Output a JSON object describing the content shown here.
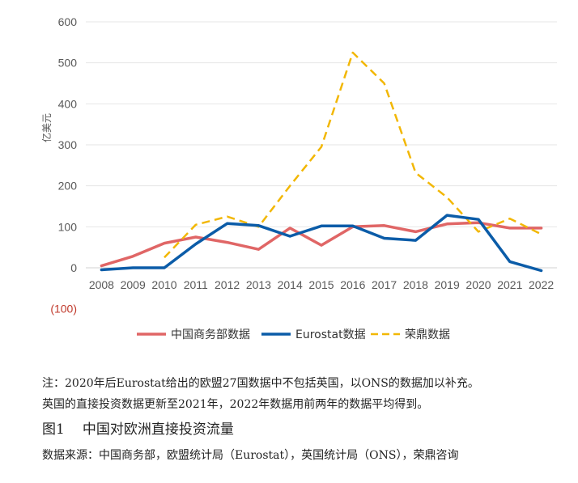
{
  "chart_data": {
    "type": "line",
    "ylabel": "亿美元",
    "ylim": [
      -100,
      600
    ],
    "yticks": [
      "600",
      "500",
      "400",
      "300",
      "200",
      "100",
      "0",
      "(100)"
    ],
    "yticks_values": [
      600,
      500,
      400,
      300,
      200,
      100,
      0,
      -100
    ],
    "categories": [
      "2008",
      "2009",
      "2010",
      "2011",
      "2012",
      "2013",
      "2014",
      "2015",
      "2016",
      "2017",
      "2018",
      "2019",
      "2020",
      "2021",
      "2022"
    ],
    "legend_position": "bottom",
    "series": [
      {
        "name": "中国商务部数据",
        "color": "#e06666",
        "style": "solid",
        "values": [
          5,
          28,
          60,
          75,
          62,
          45,
          97,
          55,
          100,
          103,
          88,
          107,
          110,
          97,
          97
        ]
      },
      {
        "name": "Eurostat数据",
        "color": "#0b5ca8",
        "style": "solid",
        "values": [
          -5,
          0,
          0,
          58,
          108,
          103,
          77,
          102,
          102,
          72,
          67,
          128,
          118,
          15,
          -7
        ]
      },
      {
        "name": "荣鼎数据",
        "color": "#f2b705",
        "style": "dashed",
        "values": [
          null,
          null,
          25,
          105,
          125,
          100,
          200,
          295,
          525,
          450,
          232,
          172,
          88,
          120,
          82
        ]
      }
    ]
  },
  "notes": {
    "line1": "注：2020年后Eurostat给出的欧盟27国数据中不包括英国，以ONS的数据加以补充。",
    "line2": "英国的直接投资数据更新至2021年，2022年数据用前两年的数据平均得到。"
  },
  "figure": {
    "number": "图1",
    "title": "中国对欧洲直接投资流量"
  },
  "source": "数据来源：中国商务部，欧盟统计局（Eurostat），英国统计局（ONS），荣鼎咨询"
}
